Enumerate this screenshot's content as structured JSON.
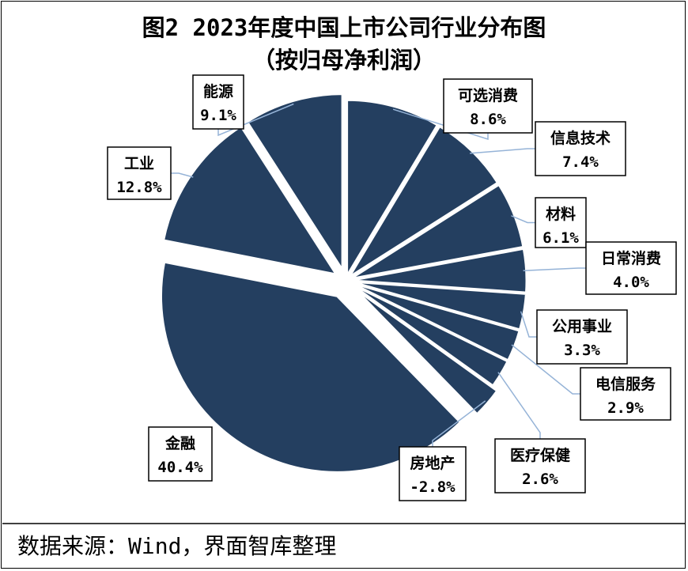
{
  "chart_data": {
    "type": "pie",
    "title": "图2 2023年度中国上市公司行业分布图",
    "subtitle": "（按归母净利润）",
    "slices": [
      {
        "name": "可选消费",
        "value_label": "8.6%",
        "value": 8.6
      },
      {
        "name": "信息技术",
        "value_label": "7.4%",
        "value": 7.4
      },
      {
        "name": "材料",
        "value_label": "6.1%",
        "value": 6.1
      },
      {
        "name": "日常消费",
        "value_label": "4.0%",
        "value": 4.0
      },
      {
        "name": "公用事业",
        "value_label": "3.3%",
        "value": 3.3
      },
      {
        "name": "电信服务",
        "value_label": "2.9%",
        "value": 2.9
      },
      {
        "name": "医疗保健",
        "value_label": "2.6%",
        "value": 2.6
      },
      {
        "name": "房地产",
        "value_label": "-2.8%",
        "value": -2.8
      },
      {
        "name": "金融",
        "value_label": "40.4%",
        "value": 40.4
      },
      {
        "name": "工业",
        "value_label": "12.8%",
        "value": 12.8
      },
      {
        "name": "能源",
        "value_label": "9.1%",
        "value": 9.1
      }
    ],
    "colors": {
      "slice_fill": "#243f60",
      "slice_stroke": "#ffffff",
      "leader": "#95b3d7",
      "label_border": "#000000"
    }
  },
  "source_text": "数据来源：Wind，界面智库整理"
}
